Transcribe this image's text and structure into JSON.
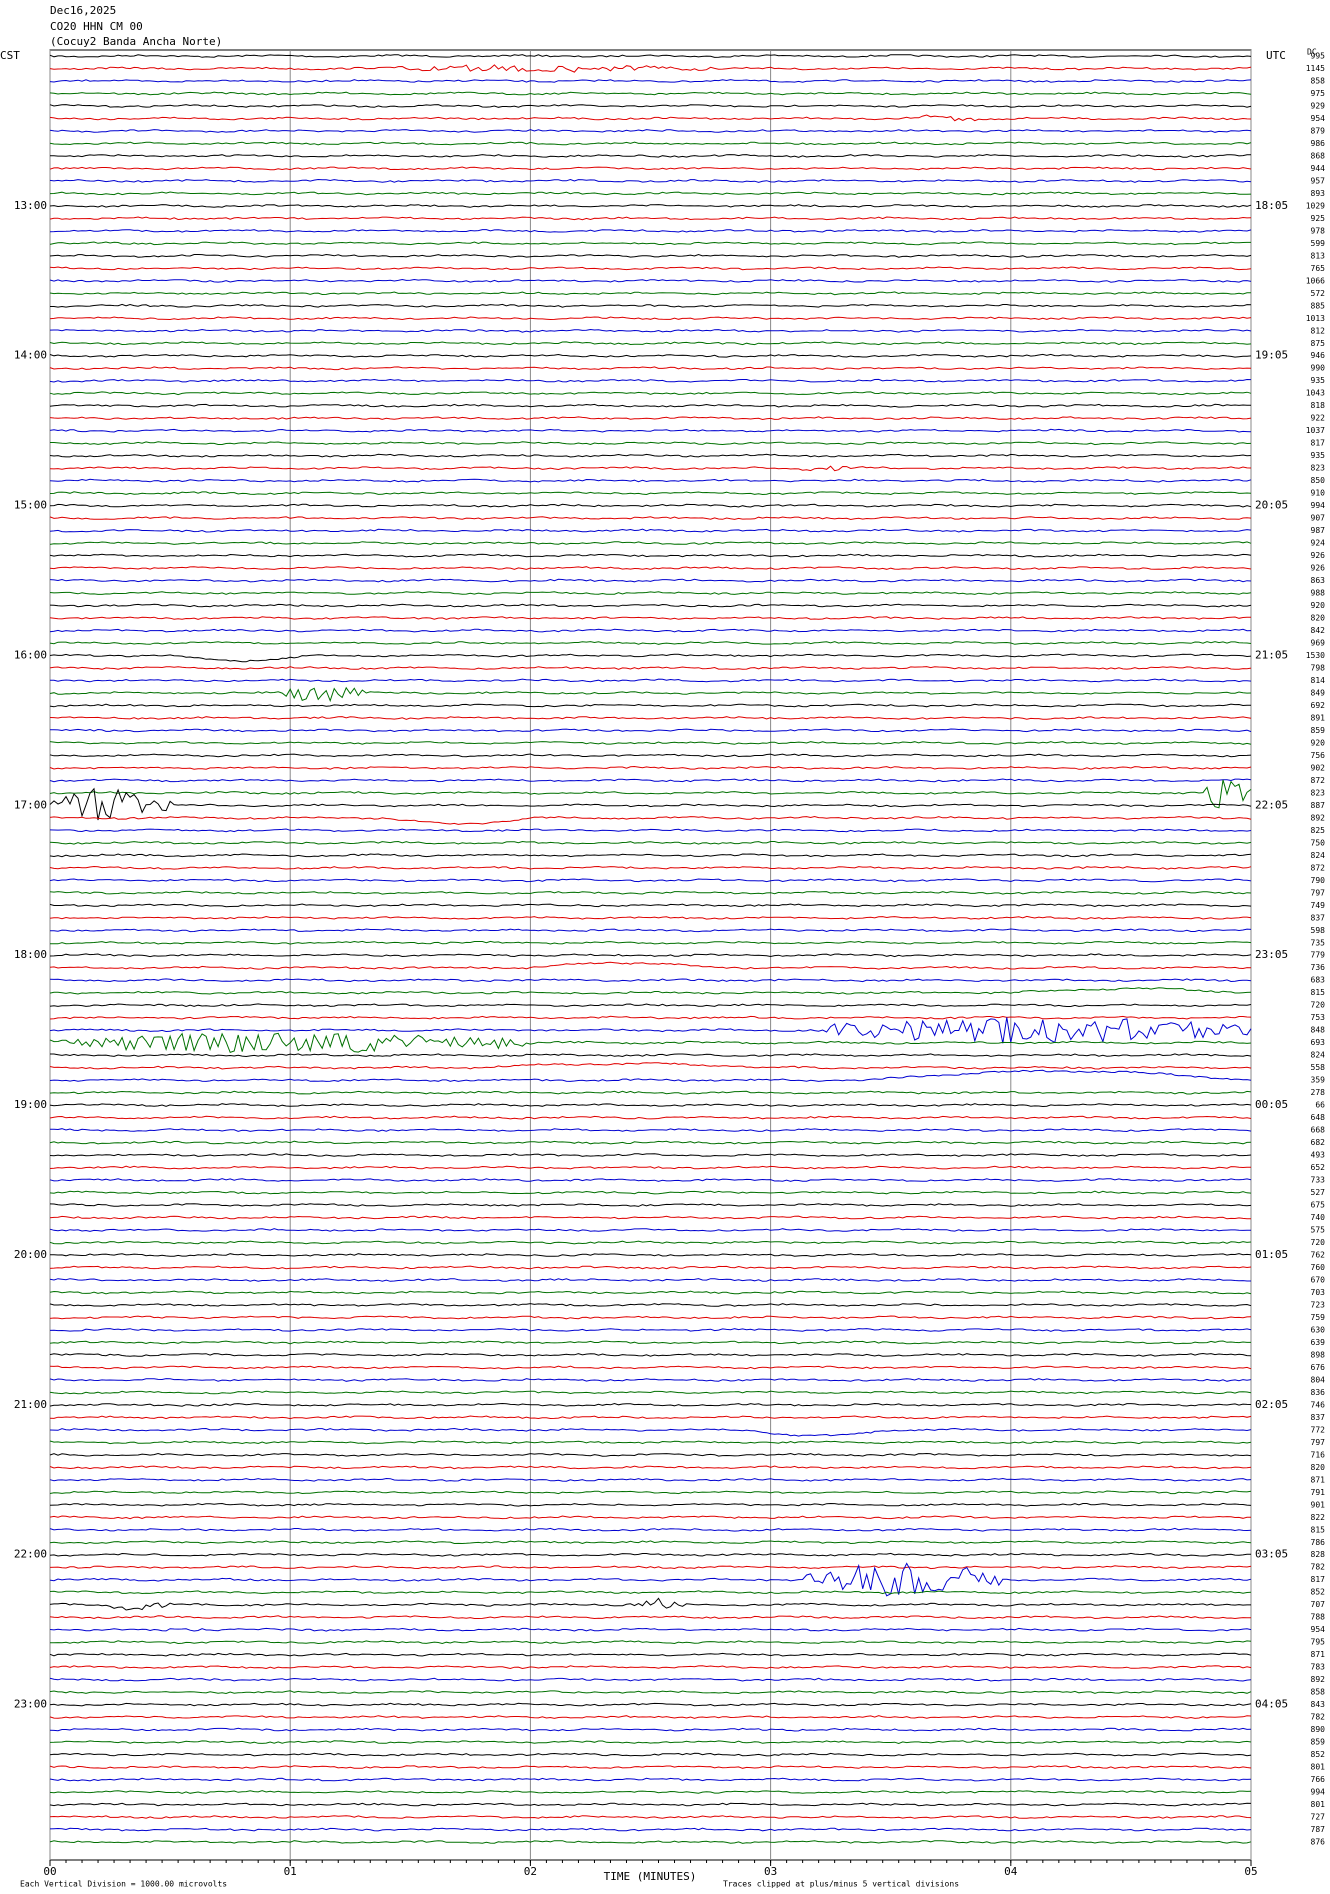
{
  "chart_data": {
    "type": "helicorder",
    "title": "Dec16,2025",
    "subtitle": "CO20 HHN CM 00",
    "station": "(Cocuy2 Banda Ancha Norte)",
    "left_zone": "CST",
    "right_zone": "UTC",
    "right_header": "DC",
    "left_labels": [
      "13:00",
      "14:00",
      "15:00",
      "16:00",
      "17:00",
      "18:00",
      "19:00",
      "20:00",
      "21:00",
      "22:00",
      "23:00"
    ],
    "right_labels": [
      "18:05",
      "19:05",
      "20:05",
      "21:05",
      "22:05",
      "23:05",
      "00:05",
      "01:05",
      "02:05",
      "03:05",
      "04:05"
    ],
    "trace_labels": [
      995,
      1145,
      858,
      975,
      929,
      954,
      879,
      986,
      868,
      944,
      957,
      893,
      1029,
      925,
      978,
      599,
      813,
      765,
      1066,
      572,
      885,
      1013,
      812,
      875,
      946,
      990,
      935,
      1043,
      818,
      922,
      1037,
      817,
      935,
      823,
      850,
      910,
      994,
      907,
      987,
      924,
      926,
      926,
      863,
      988,
      920,
      820,
      842,
      969,
      1530,
      798,
      814,
      849,
      692,
      891,
      859,
      920,
      756,
      902,
      872,
      823,
      887,
      892,
      825,
      750,
      824,
      872,
      790,
      797,
      749,
      837,
      598,
      735,
      779,
      736,
      683,
      815,
      720,
      753,
      848,
      693,
      824,
      558,
      359,
      278,
      66,
      648,
      668,
      682,
      493,
      652,
      733,
      527,
      675,
      740,
      575,
      720,
      762,
      760,
      670,
      703,
      723,
      759,
      630,
      639,
      898,
      676,
      804,
      836,
      746,
      837,
      772,
      797,
      716,
      820,
      871,
      791,
      901,
      822,
      815,
      786,
      828,
      782,
      817,
      852,
      707,
      788,
      954,
      795,
      871,
      783,
      892,
      858,
      843,
      782,
      890,
      859,
      852,
      801,
      766,
      994,
      801,
      727,
      787,
      876
    ],
    "colors": [
      "#000000",
      "#e00000",
      "#0000d0",
      "#007000"
    ],
    "xlim": [
      0,
      5
    ],
    "xticks": [
      {
        "value": 0,
        "label": "00"
      },
      {
        "value": 1,
        "label": "01"
      },
      {
        "value": 2,
        "label": "02"
      },
      {
        "value": 3,
        "label": "03"
      },
      {
        "value": 4,
        "label": "04"
      },
      {
        "value": 5,
        "label": "05"
      }
    ],
    "xlabel": "TIME (MINUTES)",
    "scale_note": "Each Vertical Division = 1000.00 microvolts",
    "clip_note": "Traces clipped at plus/minus 5 vertical divisions"
  }
}
